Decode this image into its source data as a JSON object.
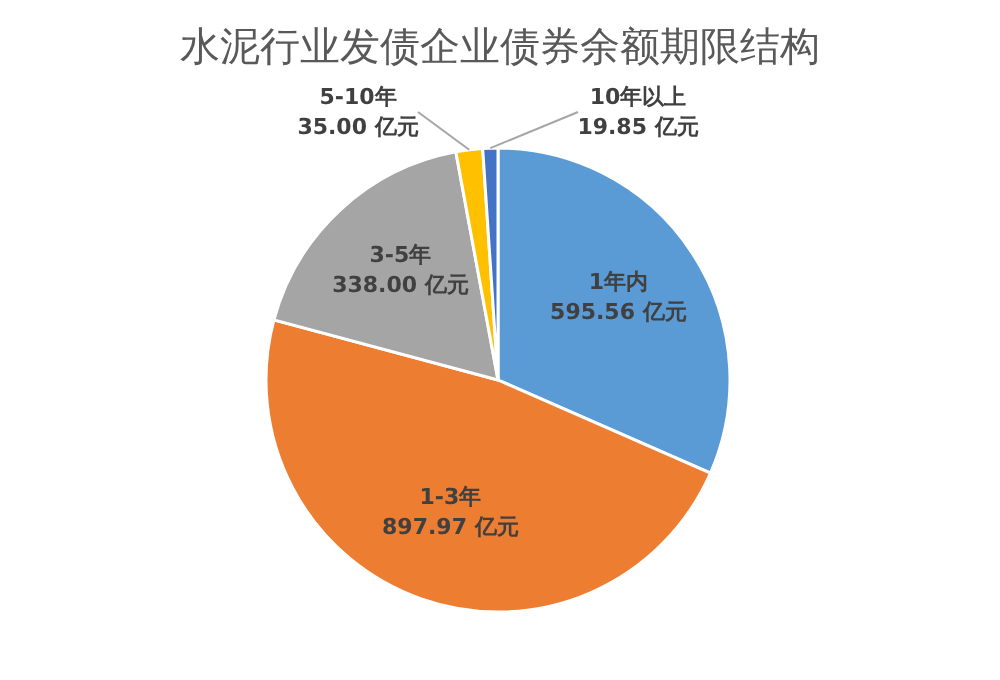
{
  "chart_data": {
    "type": "pie",
    "title": "水泥行业发债企业债券余额期限结构",
    "categories": [
      "1年内",
      "1-3年",
      "3-5年",
      "5-10年",
      "10年以上"
    ],
    "values": [
      595.56,
      897.97,
      338.0,
      35.0,
      19.85
    ],
    "value_labels": [
      "595.56 亿元",
      "897.97 亿元",
      "338.00 亿元",
      "35.00 亿元",
      "19.85 亿元"
    ],
    "colors": [
      "#5b9bd5",
      "#ed7d31",
      "#a5a5a5",
      "#ffc000",
      "#4472c4"
    ]
  }
}
